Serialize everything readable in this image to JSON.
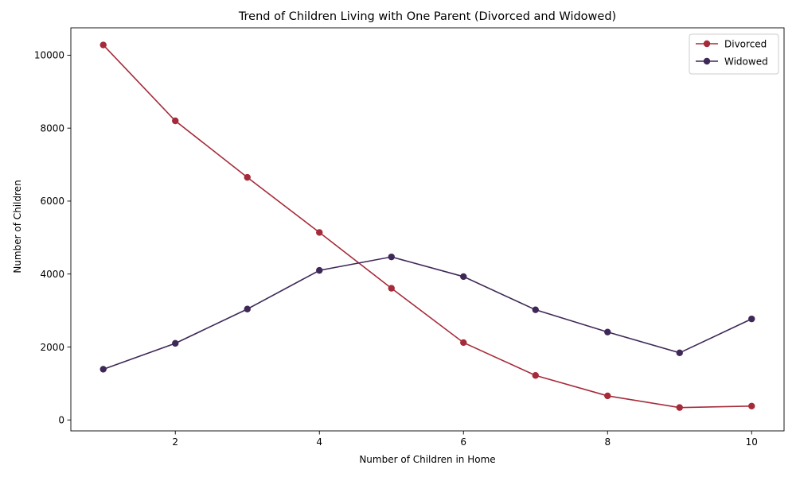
{
  "chart_data": {
    "type": "line",
    "title": "Trend of Children Living with One Parent (Divorced and Widowed)",
    "xlabel": "Number of Children in Home",
    "ylabel": "Number of Children",
    "x": [
      1,
      2,
      3,
      4,
      5,
      6,
      7,
      8,
      9,
      10
    ],
    "xlim": [
      0.55,
      10.45
    ],
    "ylim": [
      -300,
      10750
    ],
    "xticks": [
      2,
      4,
      6,
      8,
      10
    ],
    "yticks": [
      0,
      2000,
      4000,
      6000,
      8000,
      10000
    ],
    "grid": false,
    "legend_position": "top-right",
    "series": [
      {
        "name": "Divorced",
        "color": "#a62b3a",
        "marker": "circle",
        "values": [
          10280,
          8200,
          6650,
          5140,
          3610,
          2120,
          1220,
          660,
          340,
          380
        ]
      },
      {
        "name": "Widowed",
        "color": "#3e2857",
        "marker": "circle",
        "values": [
          1390,
          2100,
          3040,
          4100,
          4470,
          3930,
          3020,
          2410,
          1840,
          2770
        ]
      }
    ]
  }
}
